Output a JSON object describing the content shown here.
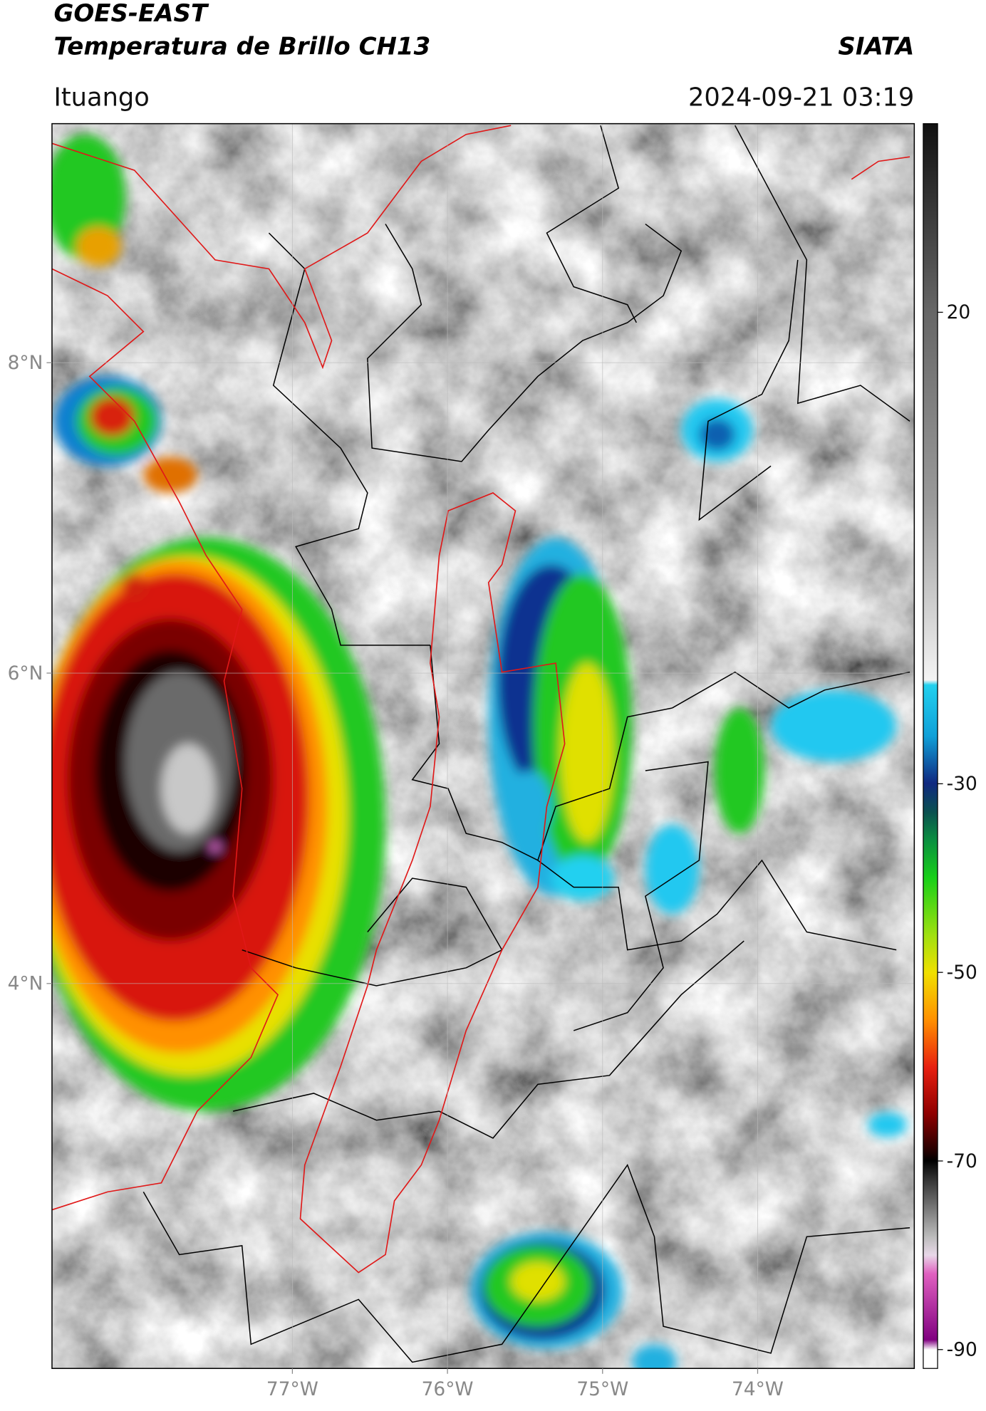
{
  "header": {
    "title": "GOES-EAST",
    "subtitle": "Temperatura de Brillo CH13",
    "source": "SIATA",
    "location": "Ituango",
    "datetime": "2024-09-21 03:19"
  },
  "map": {
    "lonlim": [
      -78.55,
      -72.99
    ],
    "latlim": [
      1.52,
      9.54
    ],
    "lonticks": [
      {
        "value": -77,
        "label": "77°W"
      },
      {
        "value": -76,
        "label": "76°W"
      },
      {
        "value": -75,
        "label": "75°W"
      },
      {
        "value": -74,
        "label": "74°W"
      }
    ],
    "latticks": [
      {
        "value": 8,
        "label": "8°N"
      },
      {
        "value": 6,
        "label": "6°N"
      },
      {
        "value": 4,
        "label": "4°N"
      }
    ],
    "grid": true
  },
  "colorbar": {
    "lim": [
      -92,
      40
    ],
    "ticks": [
      20,
      -30,
      -50,
      -70,
      -90
    ]
  }
}
